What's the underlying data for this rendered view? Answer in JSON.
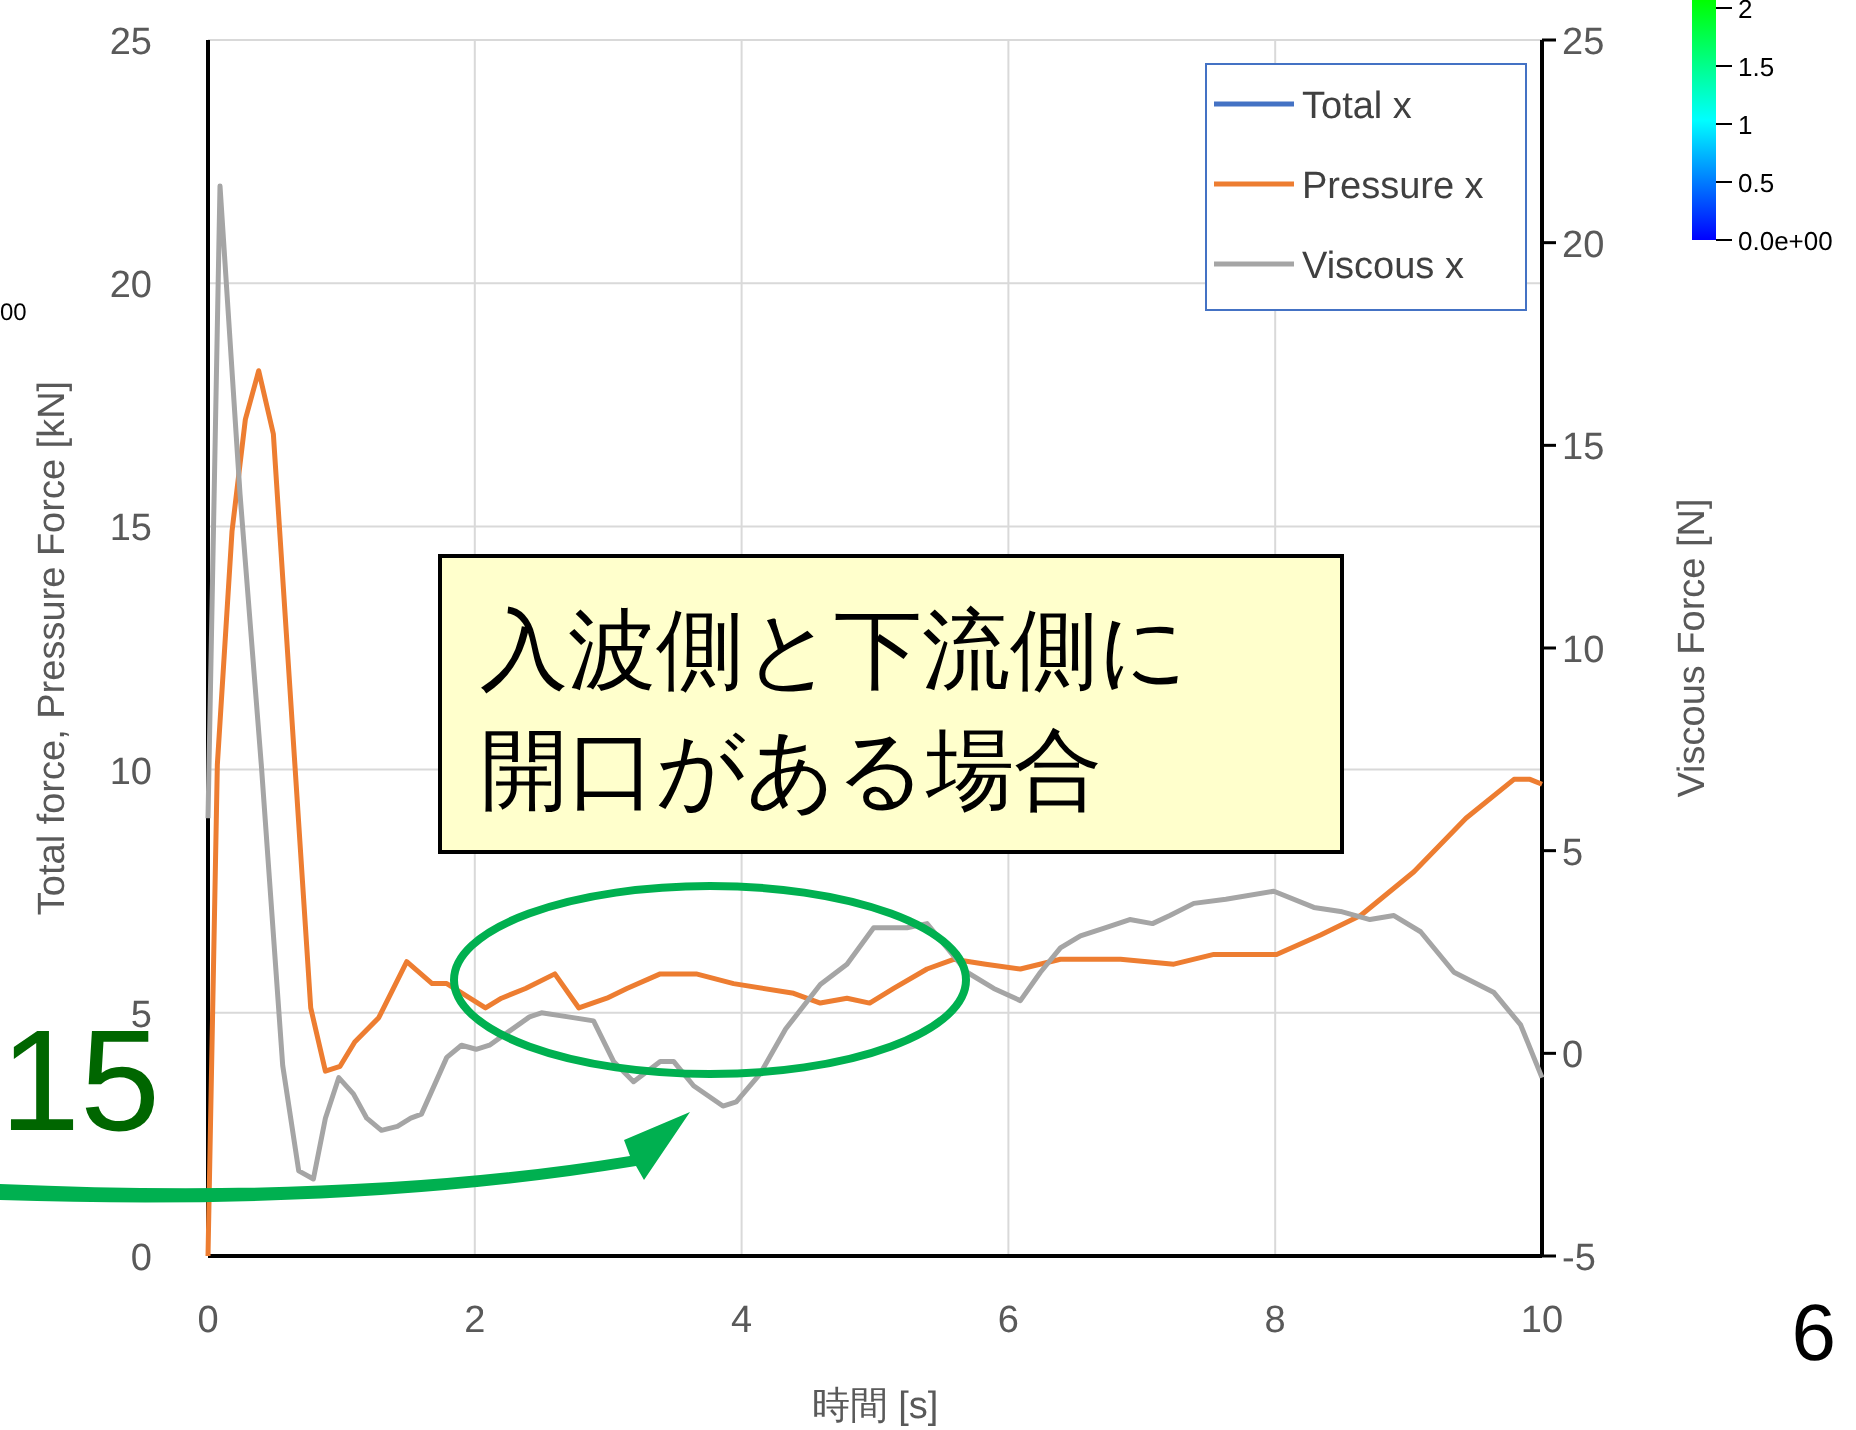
{
  "chart_data": {
    "type": "line",
    "xlabel": "時間 [s]",
    "ylabel": "Total force, Pressure Force [kN]",
    "y2label": "Viscous Force [N]",
    "xlim": [
      0,
      10
    ],
    "xticks": [
      0,
      2,
      4,
      6,
      8,
      10
    ],
    "ylim": [
      0,
      25
    ],
    "yticks": [
      0,
      5,
      10,
      15,
      20,
      25
    ],
    "y2lim": [
      -5,
      25
    ],
    "y2ticks": [
      -5,
      0,
      5,
      10,
      15,
      20,
      25
    ],
    "grid": true,
    "legend": "top right",
    "marker": "none",
    "line_style": "solid",
    "series": [
      {
        "name": "Total x",
        "color": "#4472c4"
      },
      {
        "name": "Pressure x",
        "color": "#ed7d31",
        "x": [
          0,
          0.07,
          0.18,
          0.28,
          0.38,
          0.49,
          0.77,
          0.88,
          0.99,
          1.1,
          1.28,
          1.49,
          1.68,
          1.79,
          2.08,
          2.2,
          2.38,
          2.6,
          2.78,
          2.99,
          3.14,
          3.39,
          3.66,
          3.94,
          4.39,
          4.59,
          4.79,
          4.96,
          5.14,
          5.39,
          5.59,
          5.83,
          6.09,
          6.39,
          6.84,
          7.24,
          7.54,
          8.01,
          8.34,
          8.64,
          9.04,
          9.43,
          9.79,
          9.91,
          10
        ],
        "values": [
          0,
          10.1,
          14.9,
          17.2,
          18.2,
          16.9,
          5.1,
          3.8,
          3.9,
          4.4,
          4.9,
          6.05,
          5.6,
          5.6,
          5.1,
          5.3,
          5.5,
          5.8,
          5.1,
          5.3,
          5.5,
          5.8,
          5.8,
          5.6,
          5.4,
          5.2,
          5.3,
          5.2,
          5.5,
          5.9,
          6.1,
          6.0,
          5.9,
          6.1,
          6.1,
          6.0,
          6.2,
          6.2,
          6.6,
          7.0,
          7.9,
          9.0,
          9.8,
          9.8,
          9.7
        ]
      },
      {
        "name": "Viscous x",
        "color": "#a5a5a5",
        "axis": "y2",
        "x": [
          0,
          0.09,
          0.24,
          0.4,
          0.56,
          0.68,
          0.79,
          0.88,
          0.98,
          1.09,
          1.19,
          1.3,
          1.42,
          1.52,
          1.6,
          1.79,
          1.9,
          2.01,
          2.11,
          2.41,
          2.5,
          2.7,
          2.89,
          3.04,
          3.19,
          3.39,
          3.49,
          3.64,
          3.86,
          3.96,
          4.14,
          4.33,
          4.59,
          4.79,
          4.99,
          5.24,
          5.39,
          5.54,
          5.69,
          5.89,
          6.09,
          6.24,
          6.39,
          6.54,
          6.73,
          6.91,
          7.08,
          7.21,
          7.39,
          7.63,
          7.99,
          8.29,
          8.49,
          8.71,
          8.89,
          9.09,
          9.34,
          9.64,
          9.84,
          10
        ],
        "values": [
          5.8,
          21.4,
          13.8,
          7.1,
          -0.3,
          -2.9,
          -3.1,
          -1.6,
          -0.6,
          -1.0,
          -1.6,
          -1.9,
          -1.8,
          -1.6,
          -1.5,
          -0.1,
          0.2,
          0.1,
          0.2,
          0.9,
          1.0,
          0.9,
          0.8,
          -0.2,
          -0.7,
          -0.2,
          -0.2,
          -0.8,
          -1.3,
          -1.2,
          -0.5,
          0.6,
          1.7,
          2.2,
          3.1,
          3.1,
          3.2,
          2.6,
          2.0,
          1.6,
          1.3,
          2.0,
          2.6,
          2.9,
          3.1,
          3.3,
          3.2,
          3.4,
          3.7,
          3.8,
          4.0,
          3.6,
          3.5,
          3.3,
          3.4,
          3.0,
          2.0,
          1.5,
          0.7,
          -0.6
        ]
      }
    ],
    "annotations": [
      "入波側と下流側に開口がある場合",
      "15",
      "6",
      "2",
      "1.5",
      "1",
      "0.5",
      "0.0e+00",
      "00"
    ]
  }
}
